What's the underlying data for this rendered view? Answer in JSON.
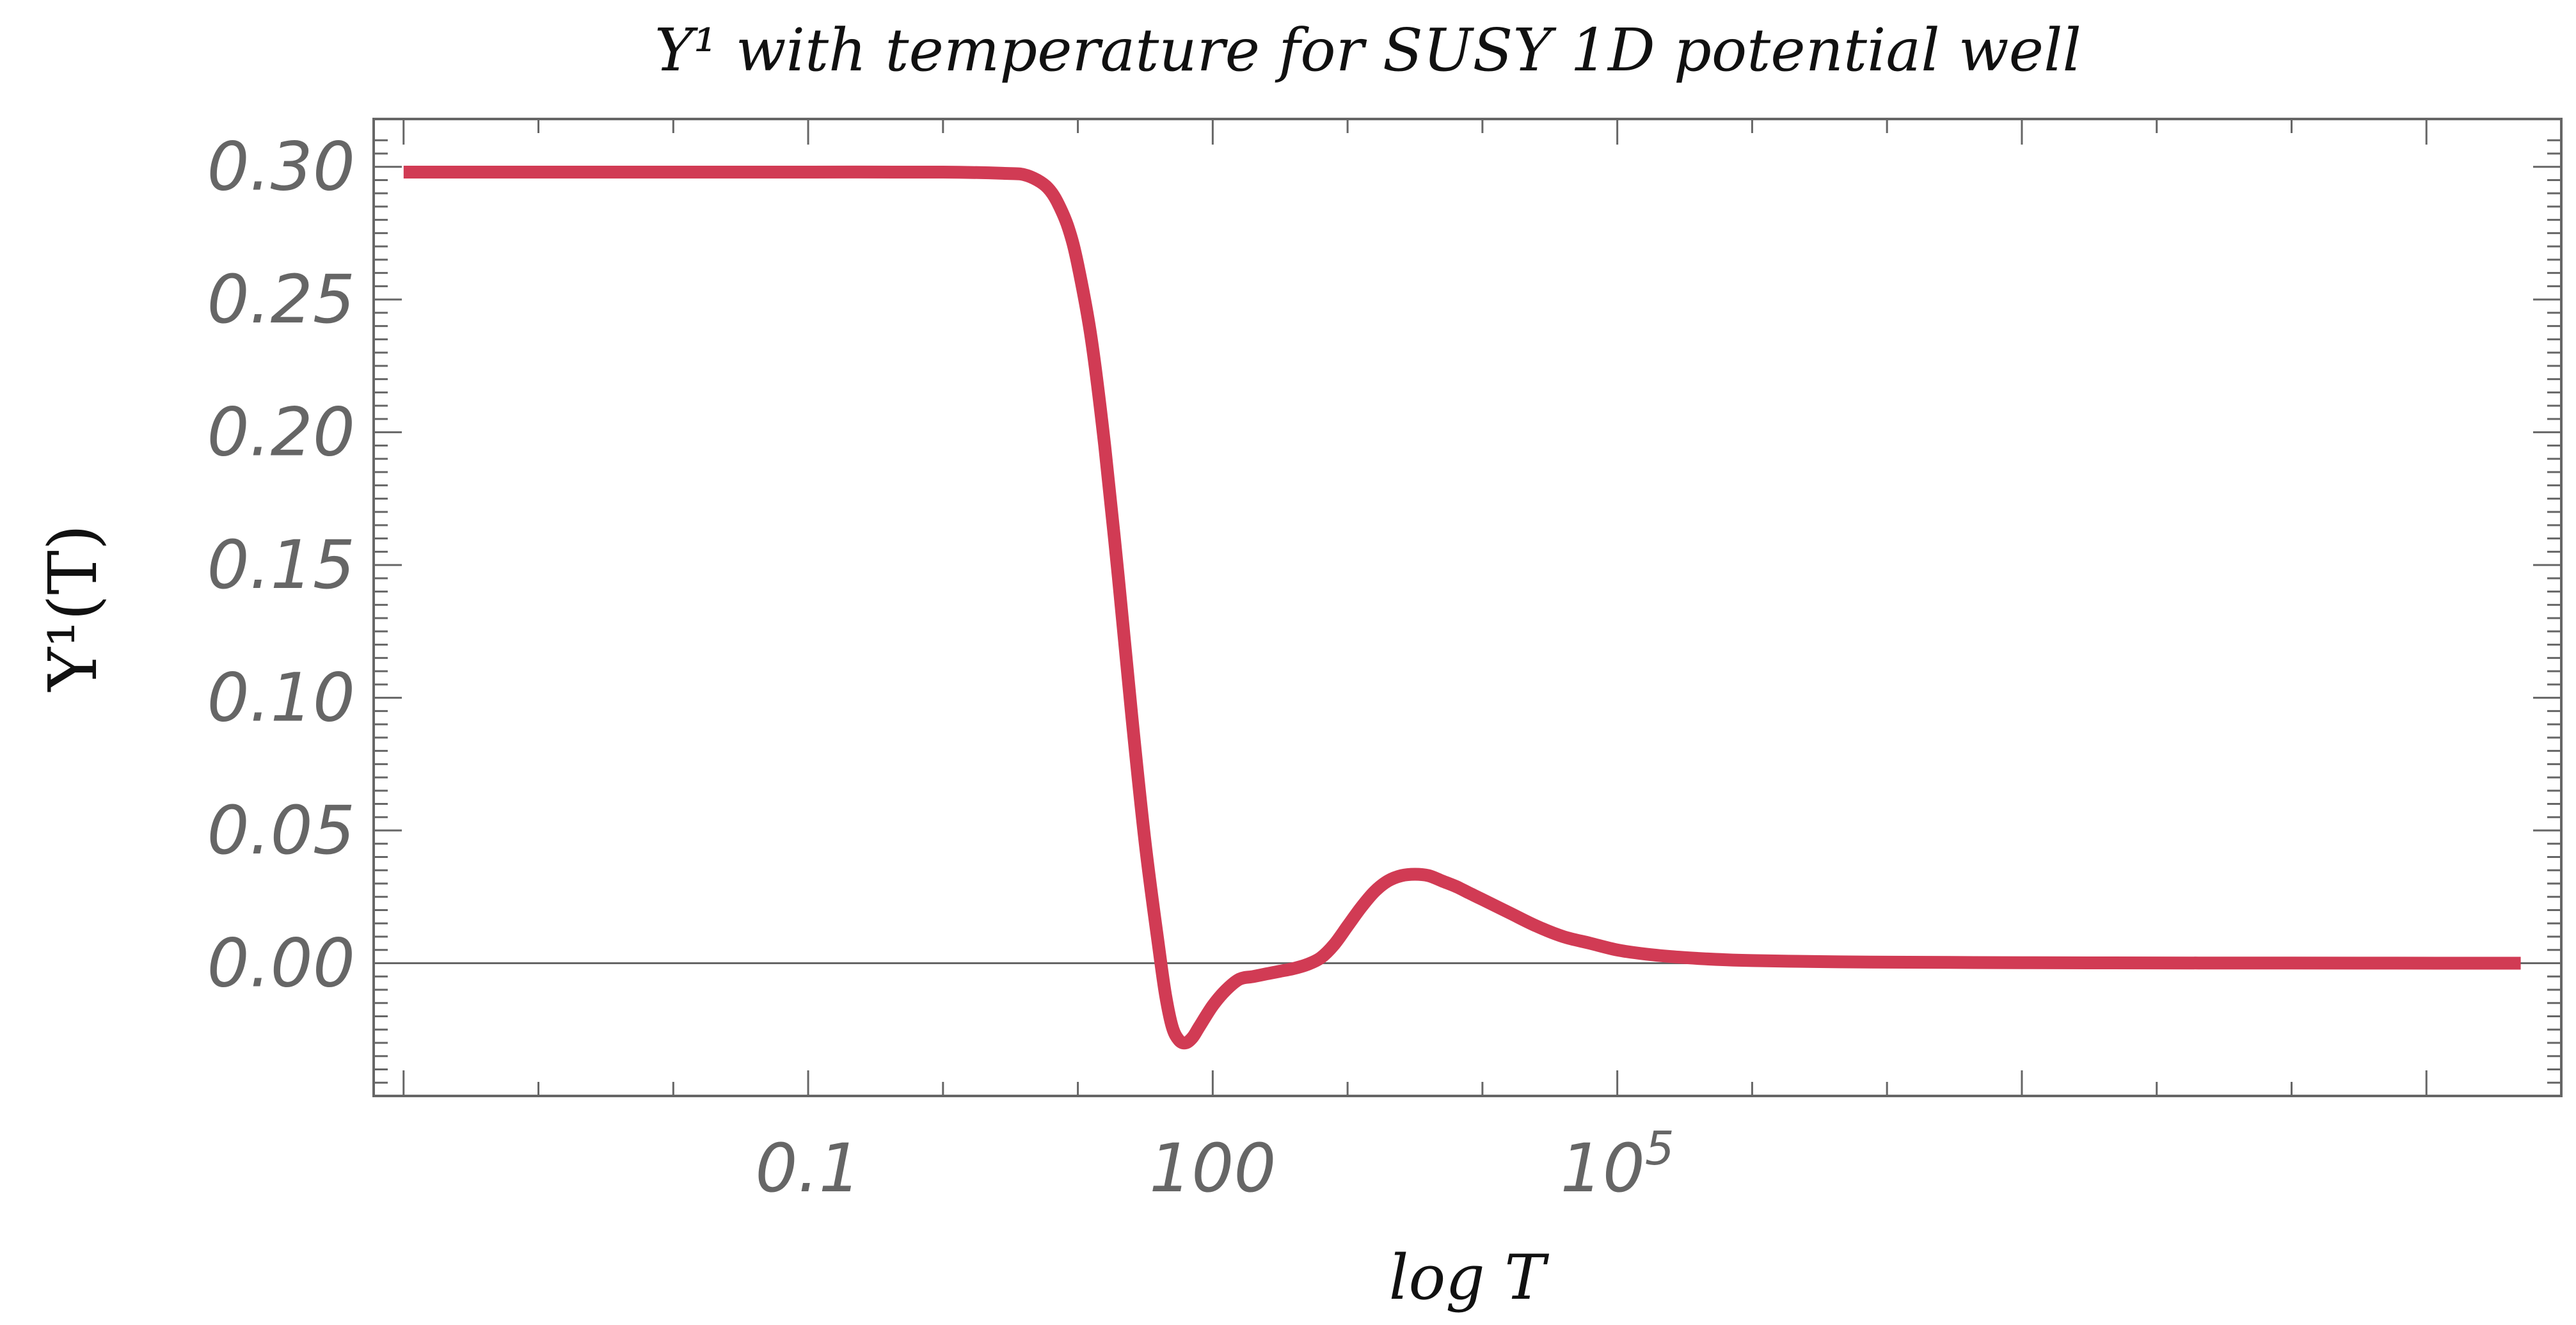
{
  "chart_data": {
    "type": "line",
    "title": "Y¹ with temperature for SUSY 1D potential well",
    "xlabel": "log T",
    "ylabel": "Y¹(T)",
    "x_scale": "log",
    "xlim": [
      6e-05,
      1000000000000.0
    ],
    "ylim": [
      -0.05,
      0.318
    ],
    "grid": false,
    "legend": "none",
    "x_ticks": [
      {
        "value": 0.1,
        "label": "0.1"
      },
      {
        "value": 100,
        "label": "100"
      },
      {
        "value": 100000,
        "label": "10",
        "sup": "5"
      }
    ],
    "y_ticks": [
      {
        "value": 0.3,
        "label": "0.30"
      },
      {
        "value": 0.25,
        "label": "0.25"
      },
      {
        "value": 0.2,
        "label": "0.20"
      },
      {
        "value": 0.15,
        "label": "0.15"
      },
      {
        "value": 0.1,
        "label": "0.10"
      },
      {
        "value": 0.05,
        "label": "0.05"
      },
      {
        "value": 0.0,
        "label": "0.00"
      }
    ],
    "series": [
      {
        "color": "#d13b54",
        "points": [
          [
            0.0001,
            0.298
          ],
          [
            0.001,
            0.298
          ],
          [
            0.01,
            0.298
          ],
          [
            0.1,
            0.298
          ],
          [
            1,
            0.298
          ],
          [
            3,
            0.2975
          ],
          [
            4,
            0.297
          ],
          [
            5,
            0.295
          ],
          [
            6,
            0.292
          ],
          [
            7,
            0.287
          ],
          [
            8.5,
            0.277
          ],
          [
            10,
            0.263
          ],
          [
            12.6,
            0.235
          ],
          [
            15.8,
            0.195
          ],
          [
            20,
            0.145
          ],
          [
            25,
            0.094
          ],
          [
            31.6,
            0.045
          ],
          [
            39.8,
            0.006
          ],
          [
            44.7,
            -0.012
          ],
          [
            50.1,
            -0.024
          ],
          [
            56.2,
            -0.029
          ],
          [
            63.1,
            -0.03
          ],
          [
            70.8,
            -0.028
          ],
          [
            79.4,
            -0.024
          ],
          [
            100,
            -0.016
          ],
          [
            126,
            -0.01
          ],
          [
            158,
            -0.006
          ],
          [
            200,
            -0.005
          ],
          [
            251,
            -0.004
          ],
          [
            316,
            -0.003
          ],
          [
            398,
            -0.002
          ],
          [
            501,
            -0.0005
          ],
          [
            631,
            0.002
          ],
          [
            794,
            0.007
          ],
          [
            1000,
            0.014
          ],
          [
            1259,
            0.021
          ],
          [
            1585,
            0.027
          ],
          [
            1995,
            0.031
          ],
          [
            2512,
            0.033
          ],
          [
            3162,
            0.0335
          ],
          [
            3981,
            0.033
          ],
          [
            5012,
            0.031
          ],
          [
            6310,
            0.029
          ],
          [
            7943,
            0.0265
          ],
          [
            10000,
            0.024
          ],
          [
            15849,
            0.019
          ],
          [
            25119,
            0.014
          ],
          [
            39811,
            0.01
          ],
          [
            63096,
            0.0075
          ],
          [
            100000,
            0.005
          ],
          [
            158489,
            0.0035
          ],
          [
            251189,
            0.0025
          ],
          [
            398107,
            0.0018
          ],
          [
            631000,
            0.0013
          ],
          [
            1000000,
            0.001
          ],
          [
            3162278,
            0.0006
          ],
          [
            10000000,
            0.0004
          ],
          [
            100000000,
            0.0002
          ],
          [
            1000000000,
            0.0001
          ],
          [
            10000000000,
            5e-05
          ],
          [
            500000000000,
            0.0
          ]
        ]
      }
    ]
  }
}
